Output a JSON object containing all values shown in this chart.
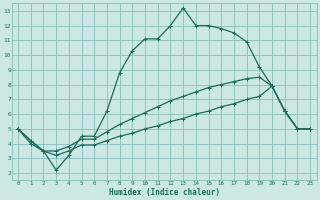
{
  "xlabel": "Humidex (Indice chaleur)",
  "xlim": [
    -0.5,
    23.5
  ],
  "ylim": [
    1.5,
    13.5
  ],
  "xticks": [
    0,
    1,
    2,
    3,
    4,
    5,
    6,
    7,
    8,
    9,
    10,
    11,
    12,
    13,
    14,
    15,
    16,
    17,
    18,
    19,
    20,
    21,
    22,
    23
  ],
  "yticks": [
    2,
    3,
    4,
    5,
    6,
    7,
    8,
    9,
    10,
    11,
    12,
    13
  ],
  "bg_color": "#cce8e4",
  "grid_color": "#88bfba",
  "line_color": "#1a6b5a",
  "line1_x": [
    0,
    1,
    2,
    3,
    4,
    5,
    6,
    7,
    8,
    9,
    10,
    11,
    12,
    13,
    14,
    15,
    16,
    17,
    18,
    19,
    20,
    21,
    22,
    23
  ],
  "line1_y": [
    5.0,
    4.0,
    3.5,
    2.2,
    3.2,
    4.5,
    4.5,
    6.2,
    8.8,
    10.3,
    11.1,
    11.1,
    12.0,
    13.2,
    12.0,
    12.0,
    11.8,
    11.5,
    10.9,
    9.2,
    7.9,
    6.2,
    5.0,
    5.0
  ],
  "line2_x": [
    0,
    1,
    2,
    3,
    4,
    5,
    6,
    7,
    8,
    9,
    10,
    11,
    12,
    13,
    14,
    15,
    16,
    17,
    18,
    19,
    20,
    21,
    22,
    23
  ],
  "line2_y": [
    5.0,
    4.2,
    3.5,
    3.5,
    3.8,
    4.3,
    4.3,
    4.8,
    5.3,
    5.7,
    6.1,
    6.5,
    6.9,
    7.2,
    7.5,
    7.8,
    8.0,
    8.2,
    8.4,
    8.5,
    7.9,
    6.2,
    5.0,
    5.0
  ],
  "line3_x": [
    0,
    1,
    2,
    3,
    4,
    5,
    6,
    7,
    8,
    9,
    10,
    11,
    12,
    13,
    14,
    15,
    16,
    17,
    18,
    19,
    20,
    21,
    22,
    23
  ],
  "line3_y": [
    5.0,
    4.2,
    3.5,
    3.2,
    3.5,
    3.9,
    3.9,
    4.2,
    4.5,
    4.7,
    5.0,
    5.2,
    5.5,
    5.7,
    6.0,
    6.2,
    6.5,
    6.7,
    7.0,
    7.2,
    7.9,
    6.2,
    5.0,
    5.0
  ],
  "marker": "+",
  "markersize": 3,
  "linewidth": 0.9
}
